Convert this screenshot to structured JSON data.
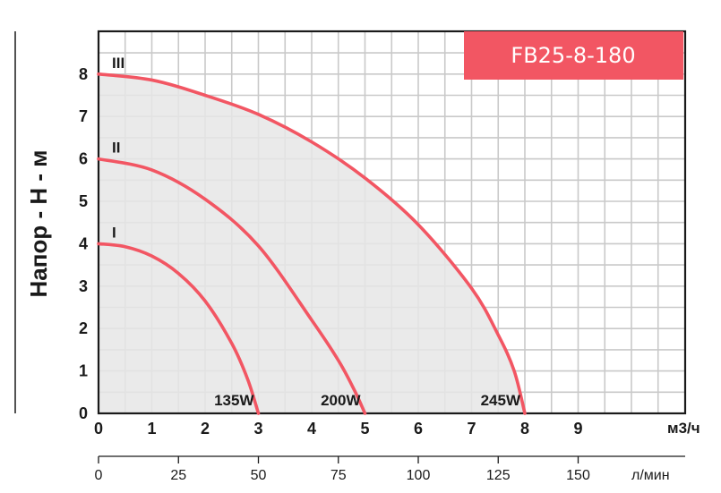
{
  "chart_data": {
    "type": "line",
    "title": "FB25-8-180",
    "ylabel": "Напор - Н - м",
    "xlabel": "м3/ч",
    "xlabel_secondary": "л/мин",
    "xlim": [
      0,
      11
    ],
    "ylim": [
      0,
      9
    ],
    "x_ticks": [
      "0",
      "1",
      "2",
      "3",
      "4",
      "5",
      "6",
      "7",
      "8",
      "9"
    ],
    "y_ticks": [
      "0",
      "1",
      "2",
      "3",
      "4",
      "5",
      "6",
      "7",
      "8"
    ],
    "x2_ticks": [
      "0",
      "25",
      "50",
      "75",
      "100",
      "125",
      "150"
    ],
    "x2_tick_values": [
      0,
      25,
      50,
      75,
      100,
      125,
      150
    ],
    "grid": true,
    "series": [
      {
        "name": "I",
        "power_label": "135W",
        "x": [
          0,
          0.5,
          1,
          1.5,
          2,
          2.5,
          2.8,
          3
        ],
        "y": [
          4,
          3.93,
          3.71,
          3.3,
          2.65,
          1.65,
          0.8,
          0
        ]
      },
      {
        "name": "II",
        "power_label": "200W",
        "x": [
          0,
          1,
          2,
          3,
          4,
          4.5,
          4.8,
          5
        ],
        "y": [
          6,
          5.74,
          5.05,
          3.95,
          2.2,
          1.25,
          0.55,
          0
        ]
      },
      {
        "name": "III",
        "power_label": "245W",
        "x": [
          0,
          1,
          2,
          3,
          4,
          5,
          6,
          7,
          7.5,
          7.8,
          8
        ],
        "y": [
          8,
          7.86,
          7.5,
          7.05,
          6.4,
          5.55,
          4.45,
          2.95,
          1.85,
          1.0,
          0
        ]
      }
    ],
    "colors": {
      "curve": "#f25663",
      "fill": "#e6e6e6",
      "grid": "#c9c9c9",
      "model_box": "#f25663",
      "axis": "#1a1a1a"
    }
  }
}
